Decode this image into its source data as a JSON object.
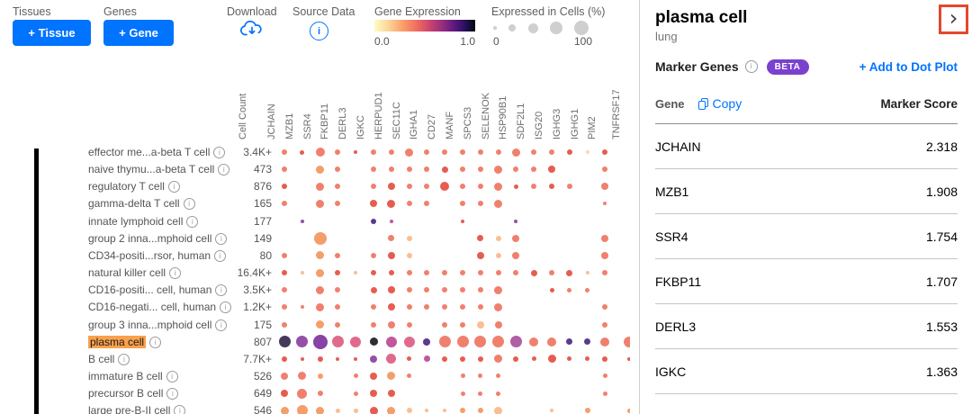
{
  "header": {
    "tissues_label": "Tissues",
    "add_tissue": "+ Tissue",
    "genes_label": "Genes",
    "add_gene": "+ Gene",
    "download_label": "Download",
    "source_data_label": "Source Data",
    "gene_expression": {
      "label": "Gene Expression",
      "min": "0.0",
      "max": "1.0"
    },
    "expressed_in_cells": {
      "label": "Expressed in Cells (%)",
      "min": "0",
      "max": "100",
      "dot_sizes": [
        3.5,
        8,
        11,
        13.5,
        16
      ]
    }
  },
  "colors": {
    "accent_blue": "#0073FF",
    "beta_purple": "#7A41CE",
    "highlight_orange": "#F9A14D",
    "annotation_red": "#E5472E"
  },
  "chart_data": {
    "type": "dotplot",
    "title": "Gene expression dot plot",
    "tissue": "lung",
    "cell_count_header": "Cell Count",
    "columns": [
      "JCHAIN",
      "MZB1",
      "SSR4",
      "FKBP11",
      "DERL3",
      "IGKC",
      "HERPUD1",
      "SEC11C",
      "IGHA1",
      "CD27",
      "MANF",
      "SPCS3",
      "SELENOK",
      "HSP90B1",
      "SDF2L1",
      "ISG20",
      "IGHG3",
      "IGHG1",
      "PIM2",
      "TNFRSF17"
    ],
    "clipped_last_column": true,
    "expression_scale": [
      0.0,
      1.0
    ],
    "percent_scale": [
      0,
      100
    ],
    "palette": {
      "sal": "#F0806E",
      "red": "#E75C51",
      "org": "#F49E6C",
      "pch": "#F9BE93",
      "lpc": "#FBD9A8",
      "pnk": "#E06A8C",
      "mag": "#C2579E",
      "mau": "#B05FA5",
      "pur": "#9450A8",
      "pu2": "#8843A6",
      "dpu": "#5C3A8D",
      "dkt": "#44395A",
      "blk": "#2F2D33"
    },
    "rows": [
      {
        "label": "effector me...a-beta T cell",
        "count": "3.4K+",
        "dots": [
          [
            0,
            3
          ],
          [
            1,
            2.5,
            "red"
          ],
          [
            2,
            5
          ],
          [
            3,
            3
          ],
          [
            4,
            2,
            "red"
          ],
          [
            5,
            3
          ],
          [
            6,
            3
          ],
          [
            7,
            4.5
          ],
          [
            8,
            3
          ],
          [
            9,
            3
          ],
          [
            10,
            3
          ],
          [
            11,
            3
          ],
          [
            12,
            3
          ],
          [
            13,
            4.5
          ],
          [
            14,
            3
          ],
          [
            15,
            3
          ],
          [
            16,
            3,
            "red"
          ],
          [
            17,
            2,
            "lpc"
          ],
          [
            18,
            3,
            "red"
          ]
        ]
      },
      {
        "label": "naive thymu...a-beta T cell",
        "count": "473",
        "dots": [
          [
            0,
            3
          ],
          [
            2,
            4.5,
            "org"
          ],
          [
            3,
            3
          ],
          [
            5,
            3
          ],
          [
            6,
            3
          ],
          [
            7,
            3
          ],
          [
            8,
            3
          ],
          [
            9,
            3.5,
            "red"
          ],
          [
            10,
            3
          ],
          [
            11,
            3
          ],
          [
            12,
            4.5
          ],
          [
            13,
            3
          ],
          [
            14,
            3
          ],
          [
            15,
            4,
            "red"
          ],
          [
            18,
            3
          ]
        ]
      },
      {
        "label": "regulatory T cell",
        "count": "876",
        "dots": [
          [
            0,
            3,
            "red"
          ],
          [
            2,
            4.5
          ],
          [
            3,
            3
          ],
          [
            5,
            3
          ],
          [
            6,
            4,
            "red"
          ],
          [
            7,
            3
          ],
          [
            8,
            3
          ],
          [
            9,
            5,
            "red"
          ],
          [
            10,
            3
          ],
          [
            11,
            3
          ],
          [
            12,
            4.5
          ],
          [
            13,
            2.5,
            "red"
          ],
          [
            14,
            3
          ],
          [
            15,
            3,
            "red"
          ],
          [
            16,
            3
          ],
          [
            18,
            4
          ]
        ]
      },
      {
        "label": "gamma-delta T cell",
        "count": "165",
        "dots": [
          [
            0,
            3
          ],
          [
            2,
            4.5
          ],
          [
            3,
            3
          ],
          [
            5,
            4,
            "red"
          ],
          [
            6,
            4.5,
            "red"
          ],
          [
            7,
            3
          ],
          [
            8,
            3
          ],
          [
            10,
            3
          ],
          [
            11,
            3
          ],
          [
            12,
            4.5
          ],
          [
            18,
            2
          ]
        ]
      },
      {
        "label": "innate lymphoid cell",
        "count": "177",
        "dots": [
          [
            1,
            2,
            "pur"
          ],
          [
            5,
            3,
            "dpu"
          ],
          [
            6,
            2,
            "mag"
          ],
          [
            10,
            2,
            "red"
          ],
          [
            13,
            2,
            "pur"
          ]
        ]
      },
      {
        "label": "group 2 inna...mphoid cell",
        "count": "149",
        "dots": [
          [
            2,
            7,
            "org"
          ],
          [
            6,
            3.5
          ],
          [
            7,
            3,
            "pch"
          ],
          [
            11,
            3.5,
            "red"
          ],
          [
            12,
            3,
            "pch"
          ],
          [
            13,
            4
          ],
          [
            18,
            4
          ]
        ]
      },
      {
        "label": "CD34-positi...rsor, human",
        "count": "80",
        "dots": [
          [
            0,
            3
          ],
          [
            2,
            4.5,
            "org"
          ],
          [
            3,
            3
          ],
          [
            5,
            3
          ],
          [
            6,
            4,
            "red"
          ],
          [
            7,
            3,
            "pch"
          ],
          [
            11,
            4,
            "red"
          ],
          [
            12,
            3,
            "pch"
          ],
          [
            13,
            4
          ],
          [
            18,
            4
          ]
        ]
      },
      {
        "label": "natural killer cell",
        "count": "16.4K+",
        "dots": [
          [
            0,
            3,
            "red"
          ],
          [
            1,
            2,
            "pch"
          ],
          [
            2,
            4.5,
            "org"
          ],
          [
            3,
            3,
            "red"
          ],
          [
            4,
            2,
            "pch"
          ],
          [
            5,
            3,
            "red"
          ],
          [
            6,
            3,
            "red"
          ],
          [
            7,
            3
          ],
          [
            8,
            3
          ],
          [
            9,
            3
          ],
          [
            10,
            3
          ],
          [
            11,
            3
          ],
          [
            12,
            3
          ],
          [
            13,
            3
          ],
          [
            14,
            3.5,
            "red"
          ],
          [
            15,
            3
          ],
          [
            16,
            3.5,
            "red"
          ],
          [
            17,
            2,
            "pch"
          ],
          [
            18,
            3
          ]
        ]
      },
      {
        "label": "CD16-positi... cell, human",
        "count": "3.5K+",
        "dots": [
          [
            0,
            3
          ],
          [
            2,
            4.5
          ],
          [
            3,
            3
          ],
          [
            5,
            3.5,
            "red"
          ],
          [
            6,
            4,
            "red"
          ],
          [
            7,
            3
          ],
          [
            8,
            3
          ],
          [
            9,
            3
          ],
          [
            10,
            3
          ],
          [
            11,
            3
          ],
          [
            12,
            4.5
          ],
          [
            15,
            2.5,
            "red"
          ],
          [
            16,
            2.5
          ],
          [
            17,
            2.5
          ]
        ]
      },
      {
        "label": "CD16-negati... cell, human",
        "count": "1.2K+",
        "dots": [
          [
            0,
            3
          ],
          [
            1,
            2
          ],
          [
            2,
            4.5
          ],
          [
            3,
            3
          ],
          [
            5,
            3
          ],
          [
            6,
            4,
            "red"
          ],
          [
            7,
            3
          ],
          [
            8,
            3
          ],
          [
            9,
            3
          ],
          [
            10,
            3
          ],
          [
            11,
            3
          ],
          [
            12,
            4.5
          ],
          [
            18,
            3
          ]
        ]
      },
      {
        "label": "group 3 inna...mphoid cell",
        "count": "175",
        "dots": [
          [
            0,
            3
          ],
          [
            2,
            4.5,
            "org"
          ],
          [
            3,
            3
          ],
          [
            5,
            3
          ],
          [
            6,
            4
          ],
          [
            7,
            3
          ],
          [
            9,
            3
          ],
          [
            10,
            3
          ],
          [
            11,
            4,
            "pch"
          ],
          [
            12,
            4
          ],
          [
            18,
            3
          ]
        ]
      },
      {
        "label": "plasma cell",
        "count": "807",
        "highlighted": true,
        "dots": [
          [
            0,
            6.5,
            "dkt"
          ],
          [
            1,
            6.5,
            "pur"
          ],
          [
            2,
            8,
            "pu2"
          ],
          [
            3,
            6.5,
            "pnk"
          ],
          [
            4,
            6,
            "pnk"
          ],
          [
            5,
            4.5,
            "blk"
          ],
          [
            6,
            6,
            "mag"
          ],
          [
            7,
            6,
            "pnk"
          ],
          [
            8,
            4,
            "dpu"
          ],
          [
            9,
            6.5
          ],
          [
            10,
            6.5
          ],
          [
            11,
            6.5
          ],
          [
            12,
            6.5
          ],
          [
            13,
            6.5,
            "mau"
          ],
          [
            14,
            5
          ],
          [
            15,
            5
          ],
          [
            16,
            3.5,
            "dpu"
          ],
          [
            17,
            3.5,
            "dpu"
          ],
          [
            18,
            5
          ],
          [
            19.35,
            6
          ]
        ]
      },
      {
        "label": "B cell",
        "count": "7.7K+",
        "dots": [
          [
            0,
            3,
            "red"
          ],
          [
            1,
            2,
            "red"
          ],
          [
            2,
            3,
            "red"
          ],
          [
            3,
            2,
            "red"
          ],
          [
            4,
            2,
            "red"
          ],
          [
            5,
            4,
            "pur"
          ],
          [
            6,
            5.5,
            "pnk"
          ],
          [
            7,
            2.5,
            "red"
          ],
          [
            8,
            3.5,
            "mag"
          ],
          [
            9,
            3,
            "red"
          ],
          [
            10,
            3,
            "red"
          ],
          [
            11,
            3,
            "red"
          ],
          [
            12,
            4.5
          ],
          [
            13,
            3,
            "red"
          ],
          [
            14,
            2.5,
            "red"
          ],
          [
            15,
            4.5,
            "red"
          ],
          [
            16,
            2.5,
            "red"
          ],
          [
            17,
            2.5,
            "red"
          ],
          [
            18,
            3,
            "red"
          ],
          [
            19.35,
            2,
            "red"
          ]
        ]
      },
      {
        "label": "immature B cell",
        "count": "526",
        "dots": [
          [
            0,
            4
          ],
          [
            1,
            4.5
          ],
          [
            2,
            3,
            "org"
          ],
          [
            4,
            2.5
          ],
          [
            5,
            4,
            "red"
          ],
          [
            6,
            4.5,
            "org"
          ],
          [
            7,
            2.5
          ],
          [
            10,
            2.5
          ],
          [
            11,
            2.5
          ],
          [
            12,
            2.5
          ],
          [
            18,
            2.5
          ]
        ]
      },
      {
        "label": "precursor B cell",
        "count": "649",
        "dots": [
          [
            0,
            4,
            "red"
          ],
          [
            1,
            5.5
          ],
          [
            2,
            3
          ],
          [
            4,
            2.5
          ],
          [
            5,
            4,
            "red"
          ],
          [
            6,
            4,
            "red"
          ],
          [
            10,
            2.5
          ],
          [
            11,
            2.5
          ],
          [
            12,
            2.5
          ],
          [
            18,
            2.5
          ]
        ]
      },
      {
        "label": "large pre-B-II cell",
        "count": "546",
        "dots": [
          [
            0,
            4.5,
            "org"
          ],
          [
            1,
            6,
            "org"
          ],
          [
            2,
            4.5,
            "org"
          ],
          [
            3,
            2.5,
            "pch"
          ],
          [
            4,
            2.5,
            "pch"
          ],
          [
            5,
            4.5,
            "red"
          ],
          [
            6,
            4.5,
            "org"
          ],
          [
            7,
            3,
            "pch"
          ],
          [
            8,
            2,
            "pch"
          ],
          [
            9,
            2,
            "pch"
          ],
          [
            10,
            3,
            "org"
          ],
          [
            11,
            3,
            "org"
          ],
          [
            12,
            4.5,
            "pch"
          ],
          [
            15,
            2,
            "pch"
          ],
          [
            17,
            3,
            "org"
          ],
          [
            19.35,
            2.5,
            "org"
          ]
        ]
      }
    ]
  },
  "side_panel": {
    "title": "plasma cell",
    "subtitle": "lung",
    "collapse_chevron": "›",
    "marker_genes_label": "Marker Genes",
    "beta_badge": "BETA",
    "add_link": "+ Add to Dot Plot",
    "table": {
      "gene_header": "Gene",
      "copy_label": "Copy",
      "score_header": "Marker Score",
      "rows": [
        {
          "gene": "JCHAIN",
          "score": "2.318"
        },
        {
          "gene": "MZB1",
          "score": "1.908"
        },
        {
          "gene": "SSR4",
          "score": "1.754"
        },
        {
          "gene": "FKBP11",
          "score": "1.707"
        },
        {
          "gene": "DERL3",
          "score": "1.553"
        },
        {
          "gene": "IGKC",
          "score": "1.363"
        }
      ]
    }
  }
}
